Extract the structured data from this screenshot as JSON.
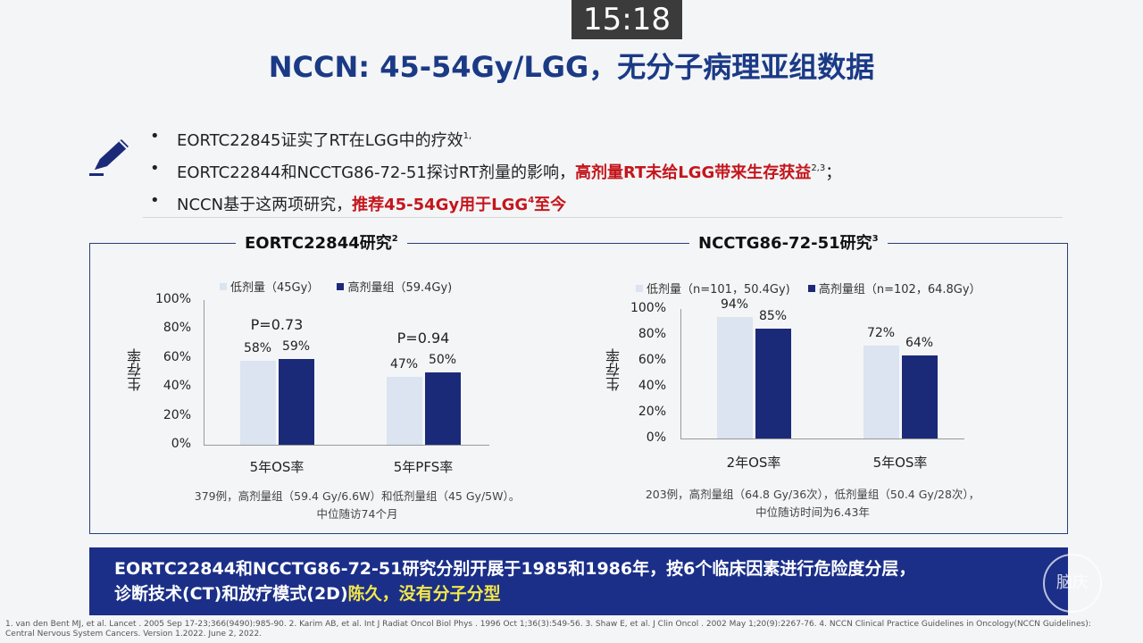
{
  "timer": "15:18",
  "title": "NCCN: 45-54Gy/LGG，无分子病理亚组数据",
  "bullets": {
    "b1_text": "EORTC22845证实了RT在LGG中的疗效",
    "b1_sup": "1,",
    "b2_text": "EORTC22844和NCCTG86-72-51探讨RT剂量的影响，",
    "b2_red": "高剂量RT未给LGG带来生存获益",
    "b2_sup": "2,3",
    "b2_end": "；",
    "b3_text": "NCCN基于这两项研究，",
    "b3_red": "推荐45-54Gy用于LGG",
    "b3_sup": "4",
    "b3_red2": "至今"
  },
  "left_study": {
    "title": "EORTC22844研究",
    "title_sup": "2",
    "legend_low": "低剂量（45Gy）",
    "legend_high": "高剂量组（59.4Gy)",
    "ylabel": "生存率",
    "note_line1": "379例，高剂量组（59.4 Gy/6.6W）和低剂量组（45 Gy/5W）。",
    "note_line2": "中位随访74个月"
  },
  "right_study": {
    "title": "NCCTG86-72-51研究",
    "title_sup": "3",
    "legend_low": "低剂量（n=101，50.4Gy)",
    "legend_high": "高剂量组（n=102，64.8Gy）",
    "ylabel": "生存率",
    "note_line1": "203例，高剂量组（64.8 Gy/36次），低剂量组（50.4 Gy/28次），",
    "note_line2": "中位随访时间为6.43年"
  },
  "chart_data": [
    {
      "type": "bar",
      "categories": [
        "5年OS率",
        "5年PFS率"
      ],
      "series": [
        {
          "name": "低剂量（45Gy）",
          "values": [
            58,
            47
          ]
        },
        {
          "name": "高剂量组（59.4Gy)",
          "values": [
            59,
            50
          ]
        }
      ],
      "value_labels": [
        [
          "58%",
          "47%"
        ],
        [
          "59%",
          "50%"
        ]
      ],
      "p_values": [
        "P=0.73",
        "P=0.94"
      ],
      "ylabel": "生存率",
      "yticks": [
        "0%",
        "20%",
        "40%",
        "60%",
        "80%",
        "100%"
      ],
      "ylim": [
        0,
        100
      ],
      "colors": [
        "#dbe4f0",
        "#1b2a78"
      ]
    },
    {
      "type": "bar",
      "categories": [
        "2年OS率",
        "5年OS率"
      ],
      "series": [
        {
          "name": "低剂量（n=101，50.4Gy)",
          "values": [
            94,
            72
          ]
        },
        {
          "name": "高剂量组（n=102，64.8Gy）",
          "values": [
            85,
            64
          ]
        }
      ],
      "value_labels": [
        [
          "94%",
          "72%"
        ],
        [
          "85%",
          "64%"
        ]
      ],
      "ylabel": "生存率",
      "yticks": [
        "0%",
        "20%",
        "40%",
        "60%",
        "80%",
        "100%"
      ],
      "ylim": [
        0,
        100
      ],
      "colors": [
        "#dbe4f0",
        "#1b2a78"
      ]
    }
  ],
  "banner": {
    "line1": "EORTC22844和NCCTG86-72-51研究分别开展于1985和1986年，按6个临床因素进行危险度分层，",
    "line2_text": "诊断技术(CT)和放疗模式(2D)",
    "line2_yellow": "陈久，没有分子分型"
  },
  "watermark": "脑庆",
  "references": "1. van den Bent MJ, et al. Lancet . 2005 Sep 17-23;366(9490):985-90. 2. Karim AB, et al. Int J Radiat Oncol Biol Phys . 1996 Oct 1;36(3):549-56. 3. Shaw E, et al. J Clin Oncol . 2002 May 1;20(9):2267-76. 4. NCCN Clinical Practice Guidelines in Oncology(NCCN Guidelines): Central Nervous System Cancers. Version 1.2022. June 2, 2022."
}
